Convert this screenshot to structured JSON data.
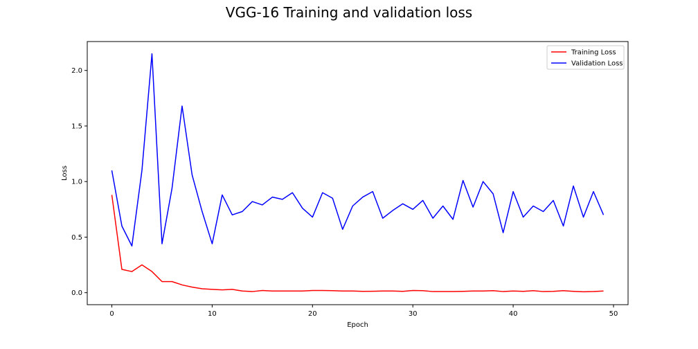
{
  "chart_data": {
    "type": "line",
    "title": "VGG-16 Training and validation loss",
    "xlabel": "Epoch",
    "ylabel": "Loss",
    "xlim": [
      -2.45,
      51.45
    ],
    "ylim": [
      -0.108,
      2.26
    ],
    "xticks": [
      0,
      10,
      20,
      30,
      40,
      50
    ],
    "yticks": [
      0.0,
      0.5,
      1.0,
      1.5,
      2.0
    ],
    "xtick_labels": [
      "0",
      "10",
      "20",
      "30",
      "40",
      "50"
    ],
    "ytick_labels": [
      "0.0",
      "0.5",
      "1.0",
      "1.5",
      "2.0"
    ],
    "grid": false,
    "legend_position": "top-right",
    "x": [
      0,
      1,
      2,
      3,
      4,
      5,
      6,
      7,
      8,
      9,
      10,
      11,
      12,
      13,
      14,
      15,
      16,
      17,
      18,
      19,
      20,
      21,
      22,
      23,
      24,
      25,
      26,
      27,
      28,
      29,
      30,
      31,
      32,
      33,
      34,
      35,
      36,
      37,
      38,
      39,
      40,
      41,
      42,
      43,
      44,
      45,
      46,
      47,
      48,
      49
    ],
    "series": [
      {
        "name": "Training Loss",
        "color": "#ff0000",
        "values": [
          0.88,
          0.21,
          0.19,
          0.25,
          0.19,
          0.1,
          0.1,
          0.07,
          0.05,
          0.035,
          0.03,
          0.025,
          0.03,
          0.015,
          0.01,
          0.02,
          0.015,
          0.015,
          0.015,
          0.015,
          0.02,
          0.02,
          0.018,
          0.015,
          0.015,
          0.012,
          0.013,
          0.015,
          0.015,
          0.012,
          0.02,
          0.018,
          0.01,
          0.01,
          0.01,
          0.012,
          0.015,
          0.015,
          0.018,
          0.01,
          0.015,
          0.012,
          0.018,
          0.01,
          0.012,
          0.018,
          0.012,
          0.008,
          0.01,
          0.015
        ]
      },
      {
        "name": "Validation Loss",
        "color": "#0000ff",
        "values": [
          1.1,
          0.6,
          0.42,
          1.1,
          2.15,
          0.44,
          0.94,
          1.68,
          1.06,
          0.73,
          0.44,
          0.88,
          0.7,
          0.73,
          0.82,
          0.79,
          0.86,
          0.84,
          0.9,
          0.76,
          0.68,
          0.9,
          0.85,
          0.57,
          0.78,
          0.86,
          0.91,
          0.67,
          0.74,
          0.8,
          0.75,
          0.83,
          0.67,
          0.78,
          0.66,
          1.01,
          0.77,
          1.0,
          0.89,
          0.54,
          0.91,
          0.68,
          0.78,
          0.73,
          0.83,
          0.6,
          0.96,
          0.68,
          0.91,
          0.7
        ]
      }
    ]
  }
}
